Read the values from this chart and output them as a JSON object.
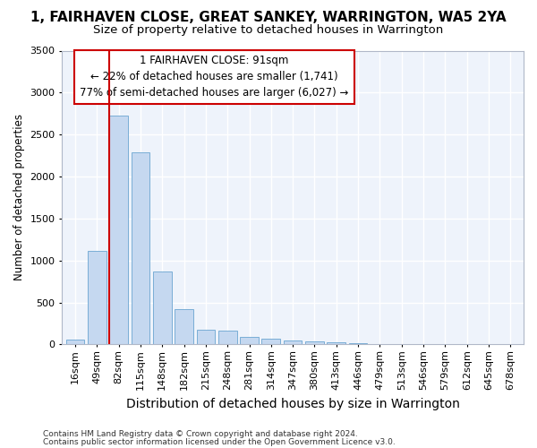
{
  "title": "1, FAIRHAVEN CLOSE, GREAT SANKEY, WARRINGTON, WA5 2YA",
  "subtitle": "Size of property relative to detached houses in Warrington",
  "xlabel": "Distribution of detached houses by size in Warrington",
  "ylabel": "Number of detached properties",
  "categories": [
    "16sqm",
    "49sqm",
    "82sqm",
    "115sqm",
    "148sqm",
    "182sqm",
    "215sqm",
    "248sqm",
    "281sqm",
    "314sqm",
    "347sqm",
    "380sqm",
    "413sqm",
    "446sqm",
    "479sqm",
    "513sqm",
    "546sqm",
    "579sqm",
    "612sqm",
    "645sqm",
    "678sqm"
  ],
  "values": [
    55,
    1110,
    2730,
    2290,
    870,
    420,
    175,
    165,
    90,
    65,
    50,
    40,
    25,
    20,
    0,
    0,
    0,
    0,
    0,
    0,
    0
  ],
  "bar_color": "#c5d8f0",
  "bar_edge_color": "#7aaed6",
  "vline_color": "#cc0000",
  "annotation_line1": "1 FAIRHAVEN CLOSE: 91sqm",
  "annotation_line2": "← 22% of detached houses are smaller (1,741)",
  "annotation_line3": "77% of semi-detached houses are larger (6,027) →",
  "annotation_box_color": "#ffffff",
  "annotation_box_edge_color": "#cc0000",
  "ylim": [
    0,
    3500
  ],
  "yticks": [
    0,
    500,
    1000,
    1500,
    2000,
    2500,
    3000,
    3500
  ],
  "footer1": "Contains HM Land Registry data © Crown copyright and database right 2024.",
  "footer2": "Contains public sector information licensed under the Open Government Licence v3.0.",
  "bg_color": "#ffffff",
  "plot_bg_color": "#eef3fb",
  "grid_color": "#ffffff",
  "title_fontsize": 11,
  "subtitle_fontsize": 9.5,
  "xlabel_fontsize": 10,
  "ylabel_fontsize": 8.5,
  "tick_fontsize": 8,
  "footer_fontsize": 6.5,
  "annotation_fontsize": 8.5
}
